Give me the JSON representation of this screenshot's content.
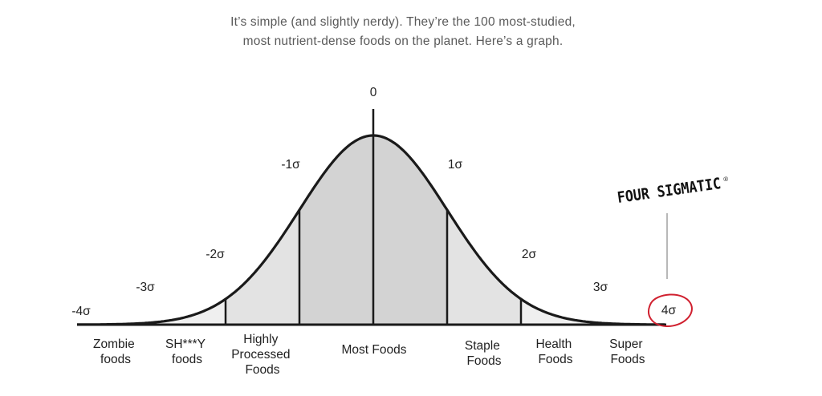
{
  "intro": {
    "line1": "It’s simple (and slightly nerdy). They’re the 100 most-studied,",
    "line2": "most nutrient-dense foods on the planet. Here’s a graph."
  },
  "sigma_labels": [
    "-4σ",
    "-3σ",
    "-2σ",
    "-1σ",
    "0",
    "1σ",
    "2σ",
    "3σ",
    "4σ"
  ],
  "categories": [
    {
      "lines": [
        "Zombie",
        "foods"
      ]
    },
    {
      "lines": [
        "SH***Y",
        "foods"
      ]
    },
    {
      "lines": [
        "Highly",
        "Processed",
        "Foods"
      ]
    },
    {
      "lines": [
        "Most Foods"
      ]
    },
    {
      "lines": [
        "Staple",
        "Foods"
      ]
    },
    {
      "lines": [
        "Health",
        "Foods"
      ]
    },
    {
      "lines": [
        "Super",
        "Foods"
      ]
    }
  ],
  "brand": {
    "name": "FOUR SIGMATIC",
    "registered": "®"
  },
  "colors": {
    "center_band": "#d3d3d3",
    "mid_band": "#e3e3e3",
    "outer_band": "#efefef",
    "highlight_circle": "#d0202f",
    "line": "#1a1a1a"
  }
}
